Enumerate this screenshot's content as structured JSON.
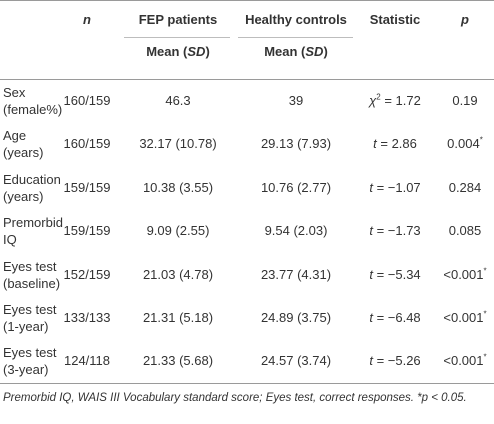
{
  "headers": {
    "n": "n",
    "fep": "FEP patients",
    "hc": "Healthy controls",
    "statistic": "Statistic",
    "p": "p",
    "mean_fep": "Mean (",
    "mean_hc": "Mean (",
    "sd": "SD",
    "close": ")"
  },
  "rows": [
    {
      "var1": "Sex",
      "var2": "(female%)",
      "n": "160/159",
      "fep": "46.3",
      "hc": "39",
      "stat_sym": "χ",
      "stat_sup": "2",
      "stat_val": " = 1.72",
      "p": "0.19",
      "p_star": ""
    },
    {
      "var1": "Age",
      "var2": "(years)",
      "n": "160/159",
      "fep": "32.17 (10.78)",
      "hc": "29.13 (7.93)",
      "stat_sym": "t",
      "stat_sup": "",
      "stat_val": " = 2.86",
      "p": "0.004",
      "p_star": "*"
    },
    {
      "var1": "Education",
      "var2": "(years)",
      "n": "159/159",
      "fep": "10.38 (3.55)",
      "hc": "10.76 (2.77)",
      "stat_sym": "t",
      "stat_sup": "",
      "stat_val": " = −1.07",
      "p": "0.284",
      "p_star": ""
    },
    {
      "var1": "Premorbid",
      "var2": "IQ",
      "n": "159/159",
      "fep": "9.09 (2.55)",
      "hc": "9.54 (2.03)",
      "stat_sym": "t",
      "stat_sup": "",
      "stat_val": " = −1.73",
      "p": "0.085",
      "p_star": ""
    },
    {
      "var1": "Eyes test",
      "var2": "(baseline)",
      "n": "152/159",
      "fep": "21.03 (4.78)",
      "hc": "23.77 (4.31)",
      "stat_sym": "t",
      "stat_sup": "",
      "stat_val": " = −5.34",
      "p": "<0.001",
      "p_star": "*"
    },
    {
      "var1": "Eyes test",
      "var2": "(1-year)",
      "n": "133/133",
      "fep": "21.31 (5.18)",
      "hc": "24.89 (3.75)",
      "stat_sym": "t",
      "stat_sup": "",
      "stat_val": " = −6.48",
      "p": "<0.001",
      "p_star": "*"
    },
    {
      "var1": "Eyes test",
      "var2": "(3-year)",
      "n": "124/118",
      "fep": "21.33 (5.68)",
      "hc": "24.57 (3.74)",
      "stat_sym": "t",
      "stat_sup": "",
      "stat_val": " = −5.26",
      "p": "<0.001",
      "p_star": "*"
    }
  ],
  "footnote": "Premorbid IQ, WAIS III Vocabulary standard score; Eyes test, correct responses. *p < 0.05."
}
